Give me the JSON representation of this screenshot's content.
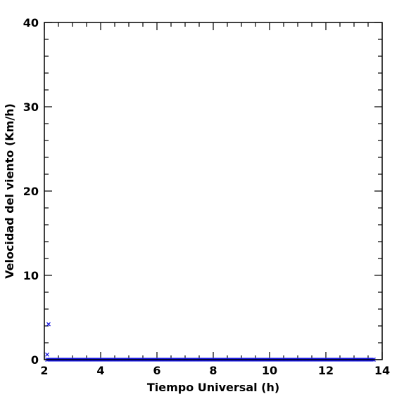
{
  "chart_data": {
    "type": "scatter",
    "title": "",
    "xlabel": "Tiempo Universal (h)",
    "ylabel": "Velocidad del viento (Km/h)",
    "xlim": [
      2,
      14
    ],
    "ylim": [
      0,
      40
    ],
    "x_ticks": [
      2,
      4,
      6,
      8,
      10,
      12,
      14
    ],
    "y_ticks": [
      0,
      10,
      20,
      30,
      40
    ],
    "x_minor_step": 0.5,
    "y_minor_step": 2,
    "grid": false,
    "marker": "x",
    "series_color": "#1010e0",
    "outlier_points": [
      {
        "x": 2.15,
        "y": 4.2
      },
      {
        "x": 2.1,
        "y": 0.6
      }
    ],
    "baseline_series": {
      "x_start": 2.1,
      "x_end": 13.7,
      "x_step": 0.05,
      "y": 0.0
    }
  }
}
